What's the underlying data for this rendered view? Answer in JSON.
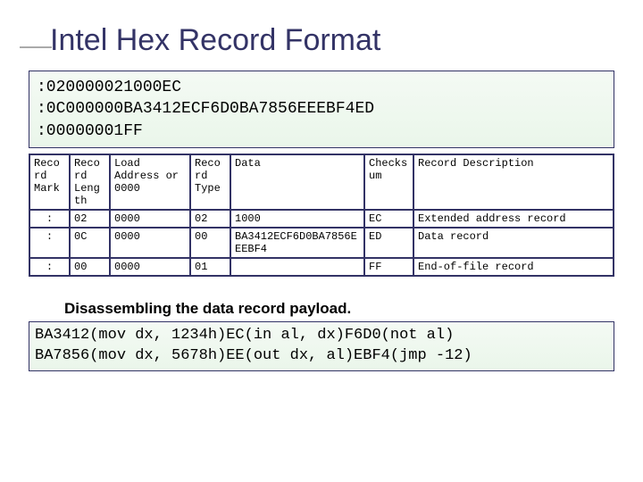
{
  "title": "Intel Hex Record Format",
  "hex_lines": [
    ":020000021000EC",
    ":0C000000BA3412ECF6D0BA7856EEEBF4ED",
    ":00000001FF"
  ],
  "record_table": {
    "columns": [
      "Record Mark",
      "Record Length",
      "Load Address or 0000",
      "Record Type",
      "Data",
      "Checksum",
      "Record Description"
    ],
    "col_widths": [
      "45px",
      "45px",
      "90px",
      "45px",
      "150px",
      "55px",
      "auto"
    ],
    "rows": [
      [
        ":",
        "02",
        "0000",
        "02",
        "1000",
        "EC",
        "Extended address record"
      ],
      [
        ":",
        "0C",
        "0000",
        "00",
        "BA3412ECF6D0BA7856EEEBF4",
        "ED",
        "Data record"
      ],
      [
        ":",
        "00",
        "0000",
        "01",
        "",
        "FF",
        "End-of-file record"
      ]
    ]
  },
  "subtitle": "Disassembling the data record payload.",
  "disassembly_lines": [
    "BA3412(mov dx, 1234h)EC(in al, dx)F6D0(not al)",
    "BA7856(mov dx, 5678h)EE(out dx, al)EBF4(jmp -12)"
  ]
}
